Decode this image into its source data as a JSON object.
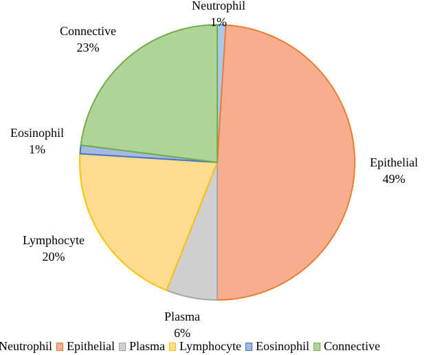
{
  "chart_data": {
    "type": "pie",
    "title": "",
    "start": "top, clockwise",
    "slices": [
      {
        "name": "Neutrophil",
        "value": 1,
        "label": "1%",
        "fill": "#A9C8EA",
        "stroke": "#5B9BD5"
      },
      {
        "name": "Epithelial",
        "value": 49,
        "label": "49%",
        "fill": "#F6AE8E",
        "stroke": "#ED7D31"
      },
      {
        "name": "Plasma",
        "value": 6,
        "label": "6%",
        "fill": "#CFCFCF",
        "stroke": "#A5A5A5"
      },
      {
        "name": "Lymphocyte",
        "value": 20,
        "label": "20%",
        "fill": "#FFDC8F",
        "stroke": "#FFC000"
      },
      {
        "name": "Eosinophil",
        "value": 1,
        "label": "1%",
        "fill": "#A3B8E3",
        "stroke": "#4472C4"
      },
      {
        "name": "Connective",
        "value": 23,
        "label": "23%",
        "fill": "#AED49A",
        "stroke": "#70AD47"
      }
    ],
    "legend_placement": "bottom"
  }
}
